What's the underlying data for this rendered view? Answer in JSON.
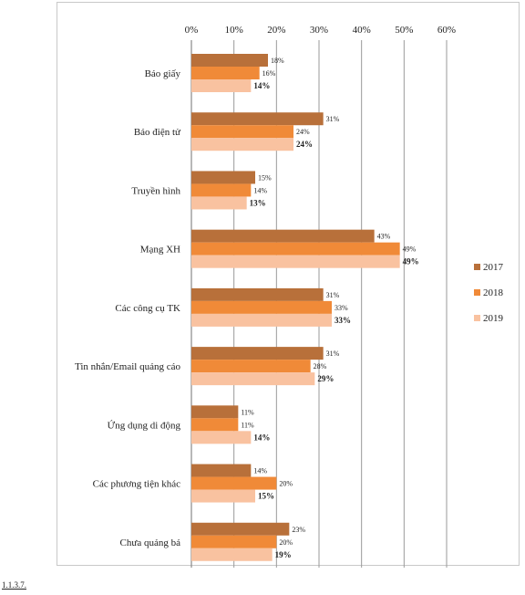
{
  "chart_data": {
    "type": "bar",
    "orientation": "horizontal",
    "categories": [
      "Báo giấy",
      "Báo điện tử",
      "Truyền hình",
      "Mạng XH",
      "Các công cụ TK",
      "Tin nhắn/Email quảng cáo",
      "Ứng dụng di động",
      "Các phương tiện khác",
      "Chưa quảng bá"
    ],
    "series": [
      {
        "name": "2017",
        "color": "#b8703a",
        "values": [
          18,
          31,
          15,
          43,
          31,
          31,
          11,
          14,
          23
        ]
      },
      {
        "name": "2018",
        "color": "#f08a38",
        "values": [
          16,
          24,
          14,
          49,
          33,
          28,
          11,
          20,
          20
        ]
      },
      {
        "name": "2019",
        "color": "#f9c2a0",
        "values": [
          14,
          24,
          13,
          49,
          33,
          29,
          14,
          15,
          19
        ]
      }
    ],
    "x_ticks": [
      "0%",
      "10%",
      "20%",
      "30%",
      "40%",
      "50%",
      "60%"
    ],
    "xlim": [
      0,
      60
    ],
    "grid": "vertical",
    "legend": "right"
  },
  "footnote": "1.1.3.7."
}
